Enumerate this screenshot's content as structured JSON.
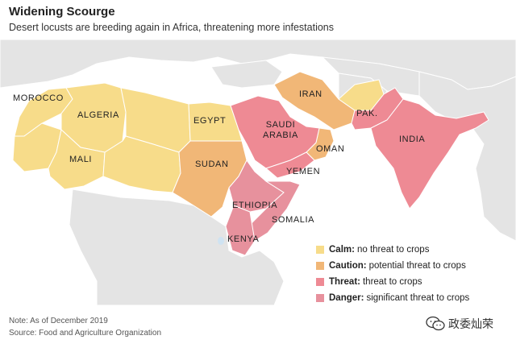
{
  "header": {
    "title": "Widening Scourge",
    "subtitle": "Desert locusts are breeding again in Africa, threatening more infestations"
  },
  "countries": [
    {
      "name": "MOROCCO",
      "level": "calm"
    },
    {
      "name": "ALGERIA",
      "level": "calm"
    },
    {
      "name": "MALI",
      "level": "calm"
    },
    {
      "name": "EGYPT",
      "level": "calm"
    },
    {
      "name": "SUDAN",
      "level": "caution"
    },
    {
      "name": "SAUDI ARABIA",
      "level": "threat"
    },
    {
      "name": "IRAN",
      "level": "caution"
    },
    {
      "name": "PAK.",
      "level": "threat"
    },
    {
      "name": "INDIA",
      "level": "threat"
    },
    {
      "name": "OMAN",
      "level": "caution"
    },
    {
      "name": "YEMEN",
      "level": "threat"
    },
    {
      "name": "ETHIOPIA",
      "level": "danger"
    },
    {
      "name": "SOMALIA",
      "level": "danger"
    },
    {
      "name": "KENYA",
      "level": "danger"
    }
  ],
  "legend": {
    "items": [
      {
        "key": "Calm:",
        "text": "no threat to crops",
        "color": "#f7dc8a"
      },
      {
        "key": "Caution:",
        "text": "potential threat to crops",
        "color": "#f1b777"
      },
      {
        "key": "Threat:",
        "text": "threat to crops",
        "color": "#ee8a94"
      },
      {
        "key": "Danger:",
        "text": "significant threat to crops",
        "color": "#e7919d"
      }
    ]
  },
  "colors": {
    "calm": "#f7dc8a",
    "caution": "#f1b777",
    "threat": "#ee8a94",
    "danger": "#e7919d",
    "land": "#e4e4e4",
    "water": "#ffffff",
    "border": "#ffffff"
  },
  "footer": {
    "note": "Note: As of December 2019",
    "source": "Source: Food and Agriculture Organization"
  },
  "watermark": {
    "text": "政委灿荣",
    "icon": "wechat-icon"
  }
}
